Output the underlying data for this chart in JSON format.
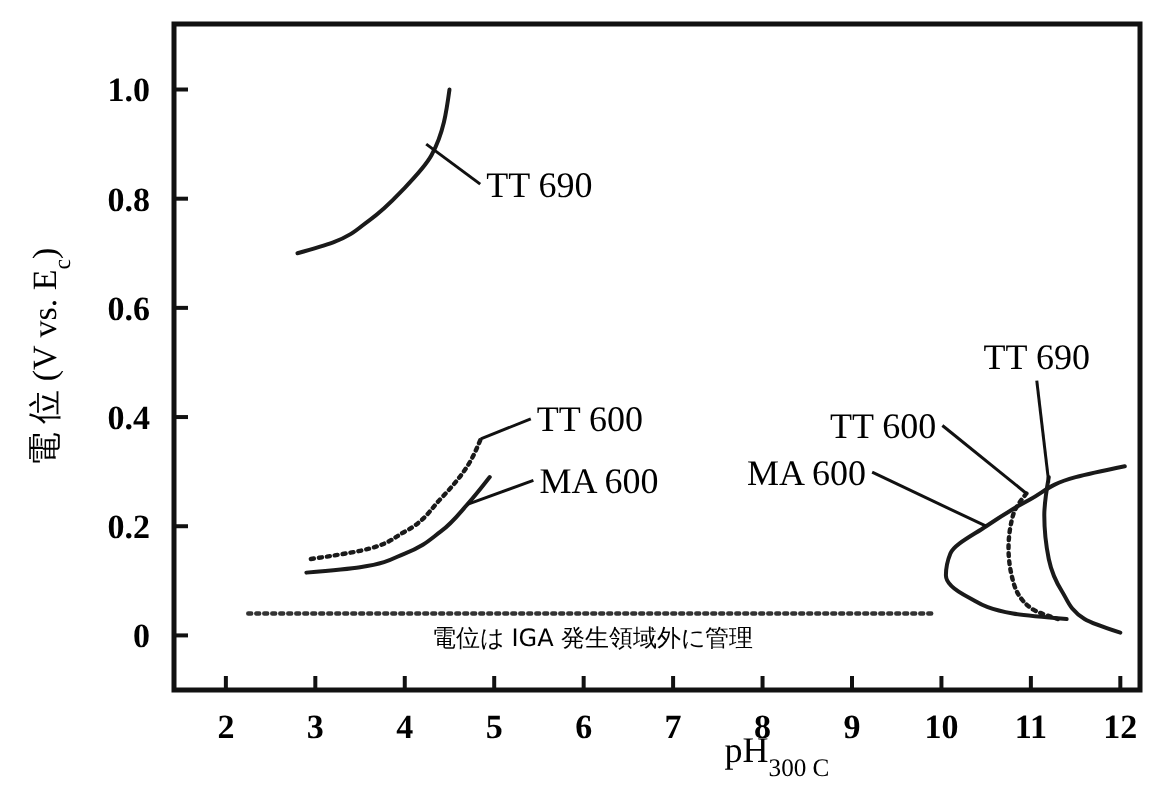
{
  "chart_data": {
    "type": "line",
    "xlabel": "pH$_{300 C}$",
    "ylabel": "電 位 (V vs. E$_{c}$)",
    "xlim": [
      1.42,
      12.22
    ],
    "ylim": [
      -0.1,
      1.12
    ],
    "xticks": [
      2,
      3,
      4,
      5,
      6,
      7,
      8,
      9,
      10,
      11,
      12
    ],
    "yticks": [
      0,
      0.2,
      0.4,
      0.6,
      0.8,
      {
        "value": 1,
        "label": "1.0"
      }
    ],
    "grid": false,
    "marker": "none",
    "series": [
      {
        "color": "#1a1a1a",
        "line_style": "solid",
        "x": [
          2.8,
          3.2,
          3.6,
          4.0,
          4.3,
          4.5
        ],
        "values": [
          0.7,
          0.72,
          0.76,
          0.82,
          0.88,
          1.0
        ]
      },
      {
        "color": "#1a1a1a",
        "line_style": "dotted",
        "x": [
          2.95,
          3.5,
          4.0,
          4.4,
          4.7,
          4.85
        ],
        "values": [
          0.14,
          0.155,
          0.19,
          0.25,
          0.31,
          0.36
        ]
      },
      {
        "color": "#1a1a1a",
        "line_style": "solid",
        "x": [
          2.9,
          3.5,
          4.0,
          4.4,
          4.7,
          4.95
        ],
        "values": [
          0.115,
          0.125,
          0.15,
          0.19,
          0.24,
          0.29
        ]
      },
      {
        "color": "#1a1a1a",
        "line_style": "solid",
        "x": [
          12.05,
          11.5,
          11.0,
          10.5,
          10.1,
          10.05,
          10.3,
          10.8,
          11.4
        ],
        "values": [
          0.31,
          0.29,
          0.25,
          0.2,
          0.15,
          0.11,
          0.07,
          0.04,
          0.03
        ]
      },
      {
        "color": "#1a1a1a",
        "line_style": "dotted",
        "x": [
          10.95,
          10.8,
          10.75,
          10.8,
          11.0,
          11.3
        ],
        "values": [
          0.26,
          0.22,
          0.16,
          0.1,
          0.05,
          0.03
        ]
      },
      {
        "color": "#1a1a1a",
        "line_style": "solid",
        "x": [
          11.2,
          11.15,
          11.2,
          11.35,
          11.6,
          12.0
        ],
        "values": [
          0.29,
          0.22,
          0.14,
          0.08,
          0.03,
          0.005
        ]
      },
      {
        "color": "#333333",
        "line_style": "dotted",
        "x": [
          2.25,
          9.9
        ],
        "values": [
          0.04,
          0.04
        ]
      }
    ],
    "annotations": [
      {
        "text": "TT 690",
        "x": 4.24,
        "y": 0.9
      },
      {
        "text": "TT 600",
        "x": 4.85,
        "y": 0.36
      },
      {
        "text": "MA 600",
        "x": 4.7,
        "y": 0.24
      },
      {
        "text": "MA 600",
        "x": 10.5,
        "y": 0.2
      },
      {
        "text": "TT 600",
        "x": 10.95,
        "y": 0.26
      },
      {
        "text": "TT 690",
        "x": 11.2,
        "y": 0.28
      },
      {
        "text": "電位は IGA 発生領域外に管理",
        "x": 6.1,
        "y": 0.04
      }
    ]
  }
}
